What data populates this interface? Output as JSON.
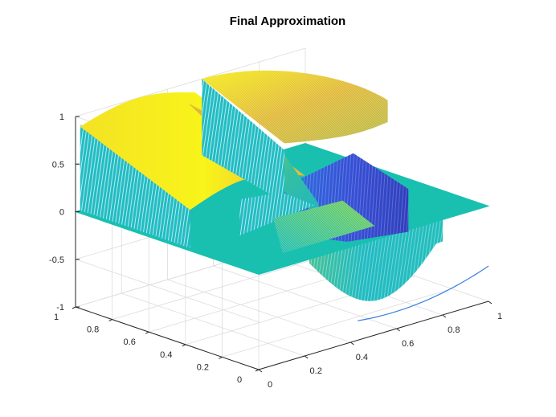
{
  "chart_data": {
    "type": "surface",
    "title": "Final Approximation",
    "xlabel": "",
    "ylabel": "",
    "zlabel": "",
    "xlim": [
      0,
      1
    ],
    "ylim": [
      0,
      1
    ],
    "zlim": [
      -1,
      1
    ],
    "x_ticks": [
      "0",
      "0.2",
      "0.4",
      "0.6",
      "0.8",
      "1"
    ],
    "y_ticks": [
      "0",
      "0.2",
      "0.4",
      "0.6",
      "0.8",
      "1"
    ],
    "z_ticks": [
      "-1",
      "-0.5",
      "0",
      "0.5",
      "1"
    ],
    "grid": true,
    "colormap": [
      "#3e26a8",
      "#2d6fed",
      "#12aed6",
      "#19c0a9",
      "#81cc59",
      "#d6ba36",
      "#f9fb15"
    ],
    "background_color": "#ffffff",
    "plane_color": "#19c0b0"
  }
}
